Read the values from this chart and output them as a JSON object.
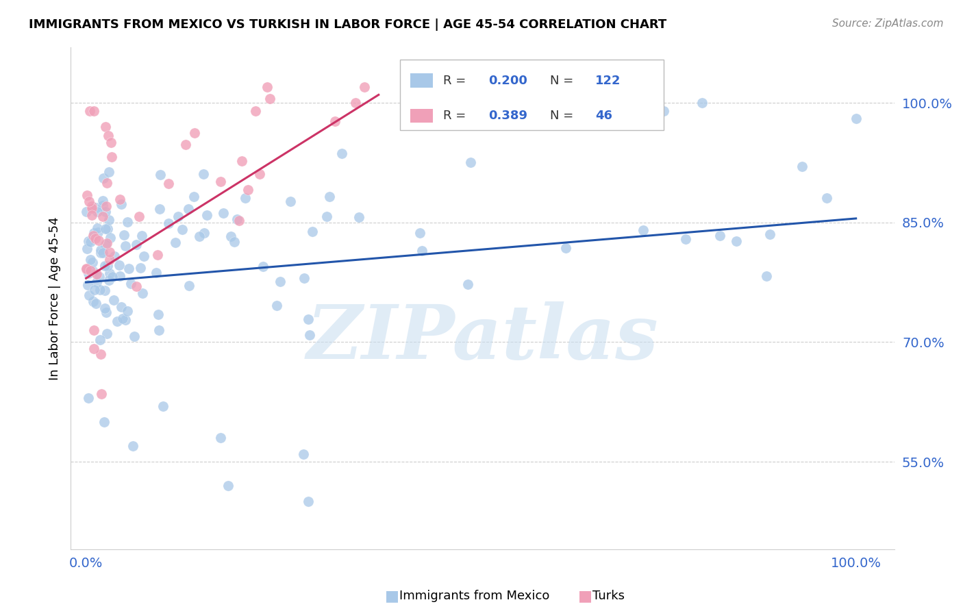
{
  "title": "IMMIGRANTS FROM MEXICO VS TURKISH IN LABOR FORCE | AGE 45-54 CORRELATION CHART",
  "source": "Source: ZipAtlas.com",
  "ylabel": "In Labor Force | Age 45-54",
  "color_mexico": "#a8c8e8",
  "color_turks": "#f0a0b8",
  "trendline_color_mexico": "#2255aa",
  "trendline_color_turks": "#cc3366",
  "watermark": "ZIPatlas",
  "legend_R_mexico": "0.200",
  "legend_N_mexico": "122",
  "legend_R_turks": "0.389",
  "legend_N_turks": "46",
  "legend_label_mexico": "Immigrants from Mexico",
  "legend_label_turks": "Turks",
  "tick_color": "#3366cc",
  "ytick_labels": [
    "55.0%",
    "70.0%",
    "85.0%",
    "100.0%"
  ],
  "ytick_vals": [
    0.55,
    0.7,
    0.85,
    1.0
  ],
  "xtick_labels": [
    "0.0%",
    "100.0%"
  ],
  "xtick_vals": [
    0.0,
    1.0
  ],
  "xlim": [
    -0.02,
    1.05
  ],
  "ylim": [
    0.44,
    1.07
  ],
  "mexico_trendline_x": [
    0.0,
    1.0
  ],
  "mexico_trendline_y": [
    0.775,
    0.855
  ],
  "turks_trendline_x": [
    0.0,
    0.38
  ],
  "turks_trendline_y": [
    0.78,
    1.01
  ]
}
